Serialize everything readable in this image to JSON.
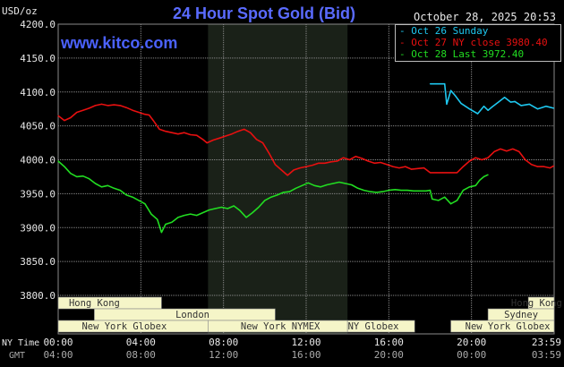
{
  "page": {
    "title": "24 Hour Spot Gold (Bid)",
    "y_axis_unit": "USD/oz",
    "timestamp": "October 28, 2025 20:53",
    "watermark": "www.kitco.com"
  },
  "legend": [
    {
      "label": "Oct 26 Sunday",
      "color": "#1ec8f0"
    },
    {
      "label": "Oct 27 NY close 3980.40",
      "color": "#e81010"
    },
    {
      "label": "Oct 28 Last 3972.40",
      "color": "#22dd22"
    }
  ],
  "colors": {
    "background": "#000000",
    "grid": "#8a8a8a",
    "shaded_band": "#1a2118",
    "session_bar_fill": "#f5f5c8",
    "session_bar_text": "#333333",
    "axis_text": "#e8e8e8",
    "gmt_text": "#aaaaaa"
  },
  "markets": [
    {
      "label": "Hong Kong",
      "row": 0,
      "start": 0,
      "end": 5,
      "text_center": 1.75
    },
    {
      "label": "Hong Kong",
      "row": 0,
      "start": 22.75,
      "end": 24,
      "text_center": 23.15
    },
    {
      "label": "London",
      "row": 1,
      "start": 1.75,
      "end": 10.5,
      "text_center": 6.5
    },
    {
      "label": "Sydney",
      "row": 1,
      "start": 20.8,
      "end": 24,
      "text_center": 22.4
    },
    {
      "label": "New York Globex",
      "row": 2,
      "start": 0,
      "end": 7.25,
      "text_center": 3.2
    },
    {
      "label": "New York NYMEX",
      "row": 2,
      "start": 7.25,
      "end": 14,
      "text_center": 10.75
    },
    {
      "label": "NY Globex",
      "row": 2,
      "start": 14,
      "end": 17.25,
      "text_center": 15.25
    },
    {
      "label": "New York Globex",
      "row": 2,
      "start": 19,
      "end": 24,
      "text_center": 21.75
    }
  ],
  "x_axis": {
    "row1_label": "NY Time",
    "row2_label": "GMT",
    "ny_ticks": [
      "00:00",
      "04:00",
      "08:00",
      "12:00",
      "16:00",
      "20:00",
      "23:59"
    ],
    "gmt_ticks": [
      "04:00",
      "08:00",
      "12:00",
      "16:00",
      "20:00",
      "00:00",
      "03:59"
    ]
  },
  "chart_data": {
    "type": "line",
    "title": "24 Hour Spot Gold (Bid)",
    "ylabel": "USD/oz",
    "xlabel": "NY Time",
    "x_unit": "hours (NY time)",
    "xlim": [
      0,
      24
    ],
    "ylim": [
      3800,
      4200
    ],
    "y_ticks": [
      3800,
      3850,
      3900,
      3950,
      4000,
      4050,
      4100,
      4150,
      4200
    ],
    "x_tick_hours": [
      0,
      4,
      8,
      12,
      16,
      20,
      23.983
    ],
    "grid": true,
    "legend_position": "top-right",
    "shaded_region_hours": [
      7.25,
      14
    ],
    "series": [
      {
        "name": "Oct 26 Sunday",
        "color": "#1ec8f0",
        "x": [
          18.0,
          18.7,
          18.8,
          19.0,
          19.2,
          19.5,
          19.9,
          20.3,
          20.6,
          20.8,
          21.0,
          21.3,
          21.6,
          21.9,
          22.1,
          22.4,
          22.8,
          23.2,
          23.6,
          23.98
        ],
        "y": [
          4112,
          4112,
          4082,
          4102,
          4095,
          4083,
          4075,
          4068,
          4079,
          4073,
          4078,
          4085,
          4092,
          4085,
          4086,
          4080,
          4082,
          4075,
          4079,
          4076
        ]
      },
      {
        "name": "Oct 27 NY close 3980.40",
        "color": "#e81010",
        "x": [
          0.0,
          0.3,
          0.6,
          0.9,
          1.2,
          1.5,
          1.8,
          2.1,
          2.4,
          2.7,
          3.0,
          3.3,
          3.6,
          3.9,
          4.2,
          4.4,
          4.6,
          4.9,
          5.2,
          5.5,
          5.8,
          6.1,
          6.4,
          6.7,
          7.0,
          7.2,
          7.5,
          7.8,
          8.1,
          8.4,
          8.7,
          9.0,
          9.3,
          9.6,
          9.9,
          10.2,
          10.5,
          10.8,
          11.1,
          11.4,
          11.7,
          12.0,
          12.3,
          12.6,
          12.9,
          13.2,
          13.5,
          13.8,
          14.1,
          14.4,
          14.7,
          15.0,
          15.3,
          15.6,
          15.9,
          16.2,
          16.5,
          16.8,
          17.1,
          17.4,
          17.7,
          18.0,
          18.6,
          19.0,
          19.3,
          19.6,
          19.9,
          20.2,
          20.5,
          20.8,
          21.1,
          21.4,
          21.7,
          22.0,
          22.3,
          22.6,
          22.9,
          23.2,
          23.5,
          23.8,
          23.98
        ],
        "y": [
          4065,
          4058,
          4062,
          4070,
          4073,
          4076,
          4080,
          4082,
          4080,
          4081,
          4080,
          4077,
          4073,
          4070,
          4067,
          4066,
          4058,
          4045,
          4042,
          4040,
          4038,
          4040,
          4037,
          4036,
          4030,
          4025,
          4029,
          4032,
          4035,
          4038,
          4042,
          4045,
          4040,
          4030,
          4025,
          4010,
          3993,
          3985,
          3977,
          3985,
          3988,
          3990,
          3992,
          3995,
          3995,
          3997,
          3998,
          4003,
          4000,
          4005,
          4002,
          3998,
          3995,
          3996,
          3993,
          3990,
          3988,
          3990,
          3986,
          3987,
          3988,
          3981,
          3981,
          3981,
          3981,
          3990,
          3998,
          4003,
          4000,
          4003,
          4012,
          4016,
          4013,
          4016,
          4012,
          4000,
          3993,
          3990,
          3990,
          3988,
          3991
        ]
      },
      {
        "name": "Oct 28 Last 3972.40",
        "color": "#22dd22",
        "x": [
          0.0,
          0.3,
          0.6,
          0.9,
          1.2,
          1.5,
          1.8,
          2.1,
          2.4,
          2.7,
          3.0,
          3.3,
          3.6,
          3.9,
          4.2,
          4.5,
          4.8,
          5.0,
          5.2,
          5.5,
          5.8,
          6.1,
          6.4,
          6.7,
          7.0,
          7.3,
          7.6,
          7.9,
          8.2,
          8.5,
          8.8,
          9.1,
          9.4,
          9.7,
          10.0,
          10.3,
          10.6,
          10.9,
          11.2,
          11.5,
          11.8,
          12.1,
          12.4,
          12.7,
          13.0,
          13.3,
          13.6,
          13.9,
          14.2,
          14.5,
          14.8,
          15.1,
          15.4,
          15.7,
          16.0,
          16.3,
          16.6,
          16.9,
          17.2,
          17.5,
          17.8,
          18.0,
          18.1,
          18.4,
          18.7,
          19.0,
          19.3,
          19.6,
          19.9,
          20.2,
          20.4,
          20.6,
          20.8
        ],
        "y": [
          3998,
          3990,
          3980,
          3975,
          3976,
          3972,
          3965,
          3960,
          3962,
          3958,
          3955,
          3948,
          3945,
          3940,
          3935,
          3920,
          3912,
          3893,
          3905,
          3908,
          3915,
          3918,
          3920,
          3918,
          3922,
          3926,
          3928,
          3930,
          3928,
          3932,
          3925,
          3915,
          3922,
          3930,
          3940,
          3945,
          3948,
          3952,
          3953,
          3958,
          3962,
          3966,
          3962,
          3960,
          3963,
          3965,
          3967,
          3965,
          3963,
          3958,
          3955,
          3953,
          3952,
          3953,
          3955,
          3956,
          3955,
          3955,
          3954,
          3954,
          3954,
          3955,
          3942,
          3940,
          3945,
          3935,
          3940,
          3955,
          3960,
          3962,
          3970,
          3975,
          3978
        ]
      }
    ]
  }
}
